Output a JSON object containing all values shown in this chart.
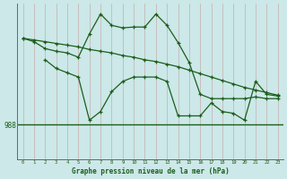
{
  "background_color": "#cce8e8",
  "plot_bg_color": "#cce8e8",
  "grid_color": "#b0c8c8",
  "line_color": "#1a5e1a",
  "hline_y": 988,
  "xlabel": "Graphe pression niveau de la mer (hPa)",
  "x_ticks": [
    0,
    1,
    2,
    3,
    4,
    5,
    6,
    7,
    8,
    9,
    10,
    11,
    12,
    13,
    14,
    15,
    16,
    17,
    18,
    19,
    20,
    21,
    22,
    23
  ],
  "xlim": [
    -0.5,
    23.5
  ],
  "ylim": [
    984,
    1002
  ],
  "line1_x": [
    0,
    1,
    2,
    3,
    4,
    5,
    6,
    7,
    8,
    9,
    10,
    11,
    12,
    13,
    14,
    15,
    16,
    17,
    18,
    19,
    20,
    21,
    22,
    23
  ],
  "line1_y": [
    998.0,
    997.8,
    997.6,
    997.4,
    997.2,
    997.0,
    996.7,
    996.5,
    996.3,
    996.0,
    995.8,
    995.5,
    995.3,
    995.0,
    994.7,
    994.3,
    993.9,
    993.5,
    993.1,
    992.7,
    992.3,
    992.0,
    991.7,
    991.4
  ],
  "line2_x": [
    0,
    1,
    2,
    3,
    4,
    5,
    6,
    7,
    8,
    9,
    10,
    11,
    12,
    13,
    14,
    15,
    16,
    17,
    18,
    19,
    20,
    21,
    22,
    23
  ],
  "line2_y": [
    998.0,
    997.6,
    996.8,
    996.5,
    996.3,
    995.8,
    998.5,
    1000.8,
    999.5,
    999.2,
    999.3,
    999.3,
    1000.8,
    999.5,
    997.5,
    995.2,
    991.5,
    991.0,
    991.0,
    991.0,
    991.0,
    991.2,
    991.0,
    991.0
  ],
  "line3_x": [
    2,
    3,
    4,
    5,
    6,
    7,
    8,
    9,
    10,
    11,
    12,
    13,
    14,
    15,
    16,
    17,
    18,
    19,
    20,
    21,
    22,
    23
  ],
  "line3_y": [
    995.5,
    994.5,
    994.0,
    993.5,
    988.5,
    989.5,
    991.8,
    993.0,
    993.5,
    993.5,
    993.5,
    993.0,
    989.0,
    989.0,
    989.0,
    990.5,
    989.5,
    989.3,
    988.5,
    993.0,
    991.5,
    991.3
  ]
}
